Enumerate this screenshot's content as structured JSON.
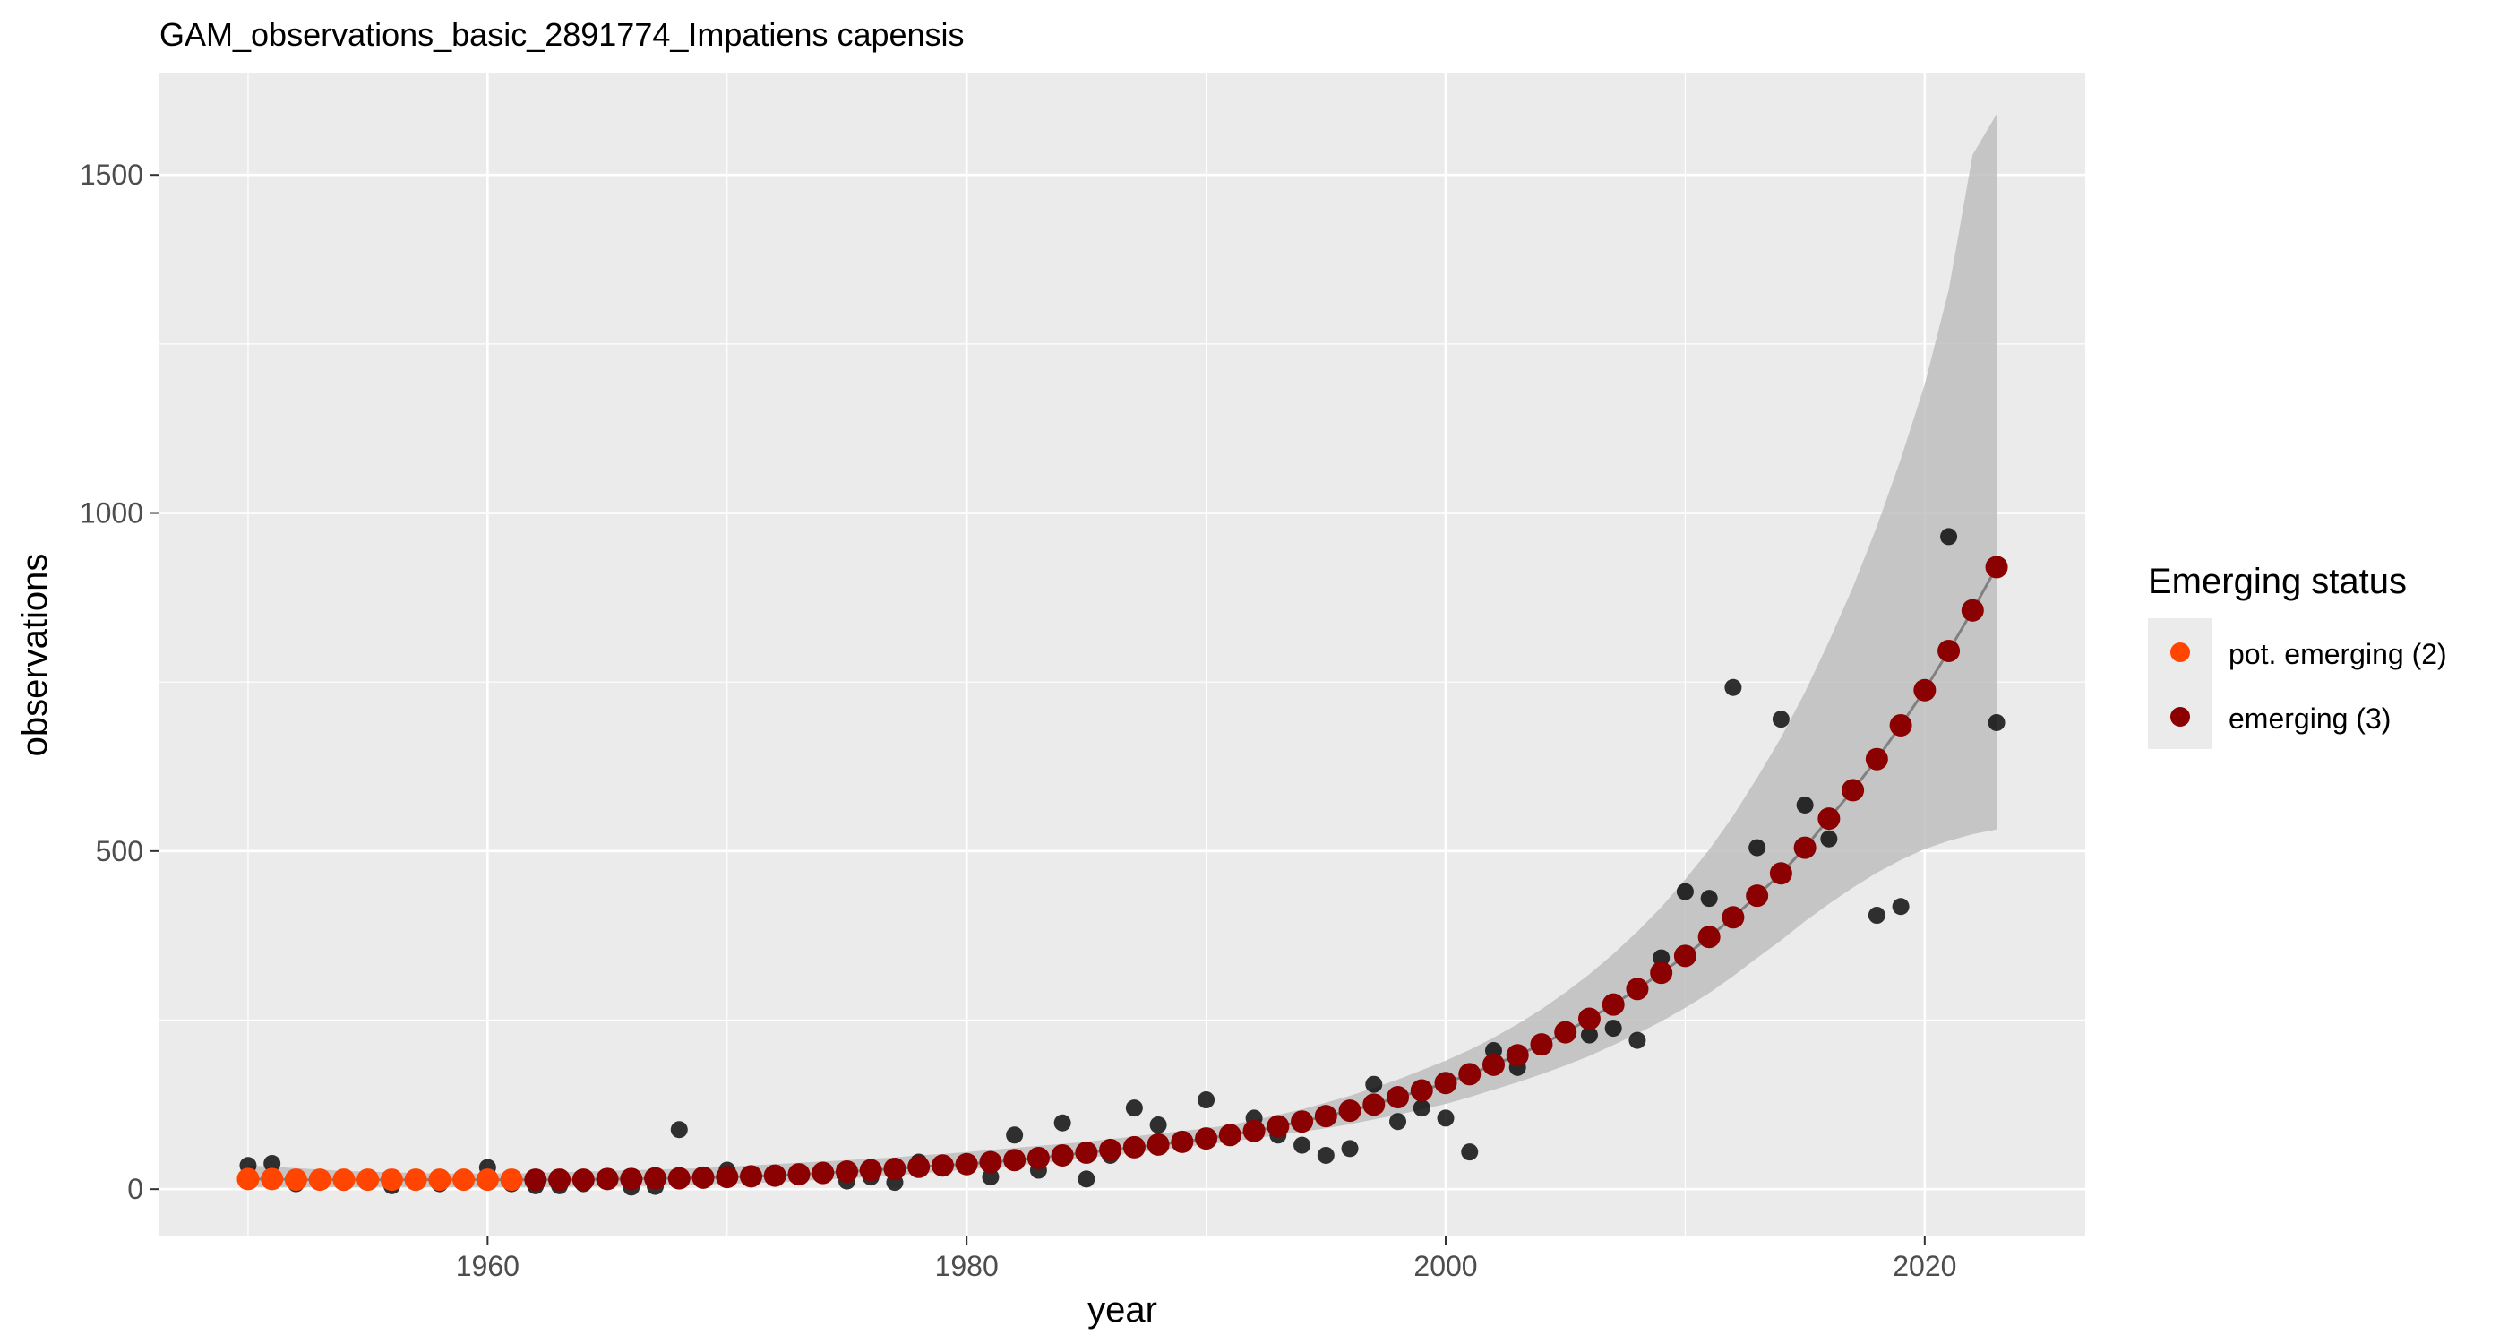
{
  "chart_data": {
    "type": "scatter",
    "title": "GAM_observations_basic_2891774_Impatiens capensis",
    "xlabel": "year",
    "ylabel": "observations",
    "xlim": [
      1946.3,
      2026.7
    ],
    "ylim": [
      -70,
      1650
    ],
    "x_ticks": [
      1960,
      1980,
      2000,
      2020
    ],
    "y_ticks": [
      0,
      500,
      1000,
      1500
    ],
    "grid": true,
    "legend": {
      "title": "Emerging status",
      "position": "right",
      "entries": [
        {
          "label": "pot. emerging (2)",
          "color": "#ff4500"
        },
        {
          "label": "emerging (3)",
          "color": "#8b0000"
        }
      ]
    },
    "colors": {
      "panel": "#ebebeb",
      "grid": "#ffffff",
      "observed": "#000000",
      "ribbon": "#bebebe",
      "fit_line": "#808080",
      "pot_emerging": "#ff4500",
      "emerging": "#8b0000"
    },
    "observed": {
      "x": [
        1950,
        1951,
        1952,
        1953,
        1954,
        1955,
        1956,
        1957,
        1958,
        1959,
        1960,
        1961,
        1962,
        1963,
        1964,
        1965,
        1966,
        1967,
        1968,
        1969,
        1970,
        1971,
        1972,
        1973,
        1974,
        1975,
        1976,
        1977,
        1978,
        1979,
        1980,
        1981,
        1982,
        1983,
        1984,
        1985,
        1986,
        1987,
        1988,
        1989,
        1990,
        1991,
        1992,
        1993,
        1994,
        1995,
        1996,
        1997,
        1998,
        1999,
        2000,
        2001,
        2002,
        2003,
        2004,
        2005,
        2006,
        2007,
        2008,
        2009,
        2010,
        2011,
        2012,
        2013,
        2014,
        2015,
        2016,
        2017,
        2018,
        2019,
        2020,
        2021,
        2022,
        2023
      ],
      "y": [
        35,
        38,
        8,
        15,
        10,
        12,
        5,
        10,
        8,
        12,
        32,
        8,
        5,
        5,
        8,
        15,
        3,
        4,
        88,
        18,
        28,
        20,
        20,
        25,
        28,
        12,
        18,
        10,
        40,
        35,
        35,
        18,
        80,
        28,
        98,
        15,
        50,
        120,
        95,
        70,
        132,
        80,
        105,
        80,
        65,
        50,
        60,
        155,
        100,
        120,
        105,
        55,
        205,
        180,
        215,
        235,
        228,
        238,
        220,
        342,
        440,
        430,
        742,
        505,
        695,
        568,
        518,
        590,
        405,
        418,
        740,
        965,
        852,
        690
      ]
    },
    "fitted": {
      "x": [
        1950,
        1951,
        1952,
        1953,
        1954,
        1955,
        1956,
        1957,
        1958,
        1959,
        1960,
        1961,
        1962,
        1963,
        1964,
        1965,
        1966,
        1967,
        1968,
        1969,
        1970,
        1971,
        1972,
        1973,
        1974,
        1975,
        1976,
        1977,
        1978,
        1979,
        1980,
        1981,
        1982,
        1983,
        1984,
        1985,
        1986,
        1987,
        1988,
        1989,
        1990,
        1991,
        1992,
        1993,
        1994,
        1995,
        1996,
        1997,
        1998,
        1999,
        2000,
        2001,
        2002,
        2003,
        2004,
        2005,
        2006,
        2007,
        2008,
        2009,
        2010,
        2011,
        2012,
        2013,
        2014,
        2015,
        2016,
        2017,
        2018,
        2019,
        2020,
        2021,
        2022,
        2023
      ],
      "y": [
        15,
        15,
        14,
        14,
        14,
        14,
        14,
        14,
        14,
        14,
        14,
        14,
        14,
        14,
        14,
        15,
        15,
        16,
        16,
        17,
        18,
        19,
        20,
        22,
        24,
        26,
        28,
        30,
        33,
        35,
        37,
        40,
        43,
        46,
        50,
        54,
        58,
        62,
        66,
        70,
        75,
        80,
        86,
        93,
        100,
        108,
        116,
        125,
        136,
        146,
        157,
        170,
        184,
        198,
        214,
        232,
        252,
        273,
        296,
        320,
        345,
        373,
        402,
        434,
        467,
        505,
        548,
        590,
        636,
        686,
        738,
        796,
        856,
        920
      ],
      "status": [
        "pot",
        "pot",
        "pot",
        "pot",
        "pot",
        "pot",
        "pot",
        "pot",
        "pot",
        "pot",
        "pot",
        "pot",
        "em",
        "em",
        "em",
        "em",
        "em",
        "em",
        "em",
        "em",
        "em",
        "em",
        "em",
        "em",
        "em",
        "em",
        "em",
        "em",
        "em",
        "em",
        "em",
        "em",
        "em",
        "em",
        "em",
        "em",
        "em",
        "em",
        "em",
        "em",
        "em",
        "em",
        "em",
        "em",
        "em",
        "em",
        "em",
        "em",
        "em",
        "em",
        "em",
        "em",
        "em",
        "em",
        "em",
        "em",
        "em",
        "em",
        "em",
        "em",
        "em",
        "em",
        "em",
        "em",
        "em",
        "em",
        "em",
        "em",
        "em",
        "em",
        "em",
        "em",
        "em",
        "em"
      ],
      "lower": [
        3,
        3,
        3,
        3,
        3,
        3,
        3,
        3,
        3,
        3,
        3,
        3,
        3,
        3,
        4,
        4,
        4,
        5,
        6,
        7,
        8,
        9,
        10,
        12,
        14,
        16,
        18,
        20,
        23,
        26,
        29,
        32,
        35,
        38,
        42,
        46,
        50,
        54,
        58,
        62,
        66,
        70,
        75,
        80,
        85,
        90,
        96,
        103,
        110,
        118,
        126,
        136,
        147,
        158,
        170,
        183,
        197,
        213,
        230,
        248,
        268,
        290,
        315,
        342,
        368,
        396,
        422,
        446,
        468,
        487,
        503,
        515,
        525,
        532
      ],
      "upper": [
        35,
        33,
        31,
        29,
        27,
        26,
        25,
        24,
        23,
        23,
        23,
        23,
        24,
        25,
        26,
        27,
        28,
        29,
        30,
        31,
        33,
        35,
        37,
        39,
        41,
        43,
        45,
        47,
        50,
        52,
        55,
        58,
        61,
        64,
        67,
        70,
        74,
        78,
        82,
        86,
        90,
        95,
        102,
        110,
        118,
        128,
        138,
        150,
        162,
        176,
        190,
        206,
        224,
        244,
        266,
        291,
        318,
        348,
        381,
        417,
        458,
        502,
        552,
        608,
        668,
        735,
        810,
        890,
        980,
        1080,
        1190,
        1330,
        1530,
        1590
      ]
    }
  }
}
